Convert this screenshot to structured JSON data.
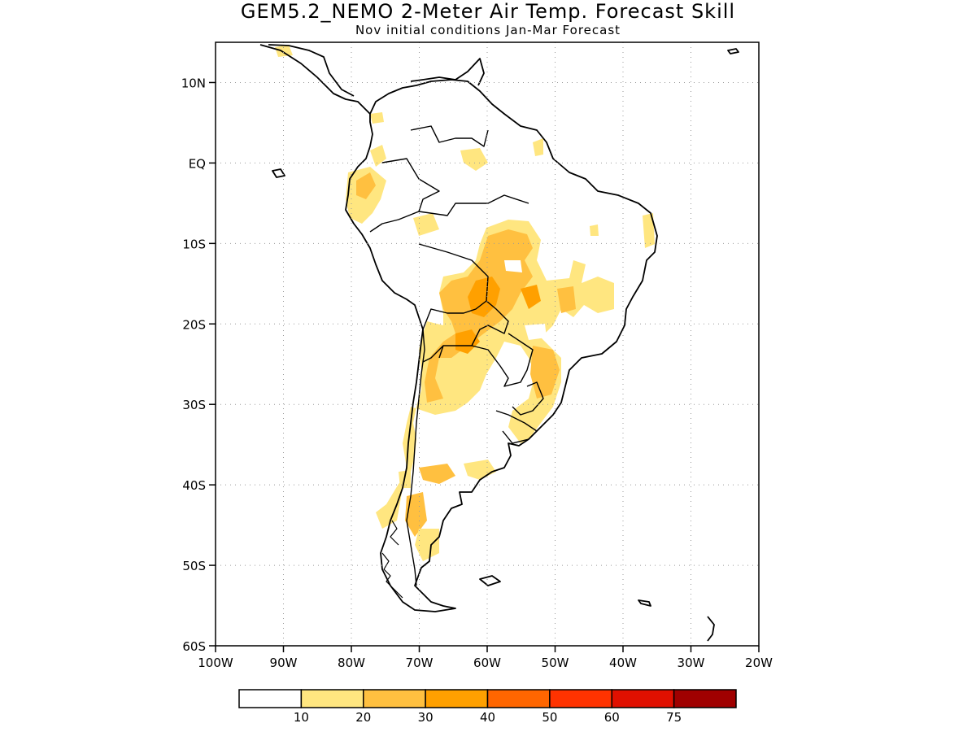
{
  "title": "GEM5.2_NEMO 2-Meter Air Temp. Forecast Skill",
  "subtitle": "Nov initial conditions  Jan-Mar Forecast",
  "map": {
    "lon_min": -100,
    "lon_max": -20,
    "lat_min": -60,
    "lat_max": 15,
    "y_tick_labels": [
      "10N",
      "EQ",
      "10S",
      "20S",
      "30S",
      "40S",
      "50S",
      "60S"
    ],
    "y_tick_values": [
      10,
      0,
      -10,
      -20,
      -30,
      -40,
      -50,
      -60
    ],
    "x_tick_labels": [
      "100W",
      "90W",
      "80W",
      "70W",
      "60W",
      "50W",
      "40W",
      "30W",
      "20W"
    ],
    "x_tick_values": [
      -100,
      -90,
      -80,
      -70,
      -60,
      -50,
      -40,
      -30,
      -20
    ],
    "grid": "dotted"
  },
  "legend": {
    "labels": [
      "10",
      "20",
      "30",
      "40",
      "50",
      "60",
      "75"
    ],
    "colors": [
      "#ffffff",
      "#ffe680",
      "#ffc040",
      "#ffa000",
      "#ff6600",
      "#ff3300",
      "#e01000",
      "#a00000"
    ]
  }
}
